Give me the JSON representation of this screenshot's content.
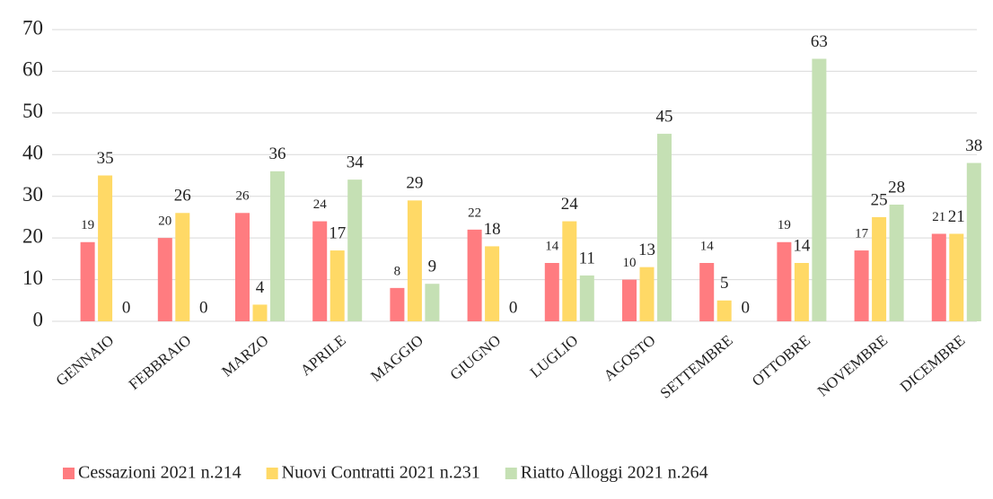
{
  "chart_data": {
    "type": "bar",
    "categories": [
      "GENNAIO",
      "FEBBRAIO",
      "MARZO",
      "APRILE",
      "MAGGIO",
      "GIUGNO",
      "LUGLIO",
      "AGOSTO",
      "SETTEMBRE",
      "OTTOBRE",
      "NOVEMBRE",
      "DICEMBRE"
    ],
    "series": [
      {
        "name": "Cessazioni 2021 n.214",
        "color": "#ff7c80",
        "values": [
          19,
          20,
          26,
          24,
          8,
          22,
          14,
          10,
          14,
          19,
          17,
          21
        ]
      },
      {
        "name": "Nuovi Contratti 2021 n.231",
        "color": "#ffd966",
        "values": [
          35,
          26,
          4,
          17,
          29,
          18,
          24,
          13,
          5,
          14,
          25,
          21
        ]
      },
      {
        "name": "Riatto Alloggi 2021 n.264",
        "color": "#c5e0b4",
        "values": [
          0,
          0,
          36,
          34,
          9,
          0,
          11,
          45,
          0,
          63,
          28,
          38
        ]
      }
    ],
    "ylim": [
      0,
      70
    ],
    "yticks": [
      0,
      10,
      20,
      30,
      40,
      50,
      60,
      70
    ],
    "grid": true,
    "legend": "bottom"
  }
}
